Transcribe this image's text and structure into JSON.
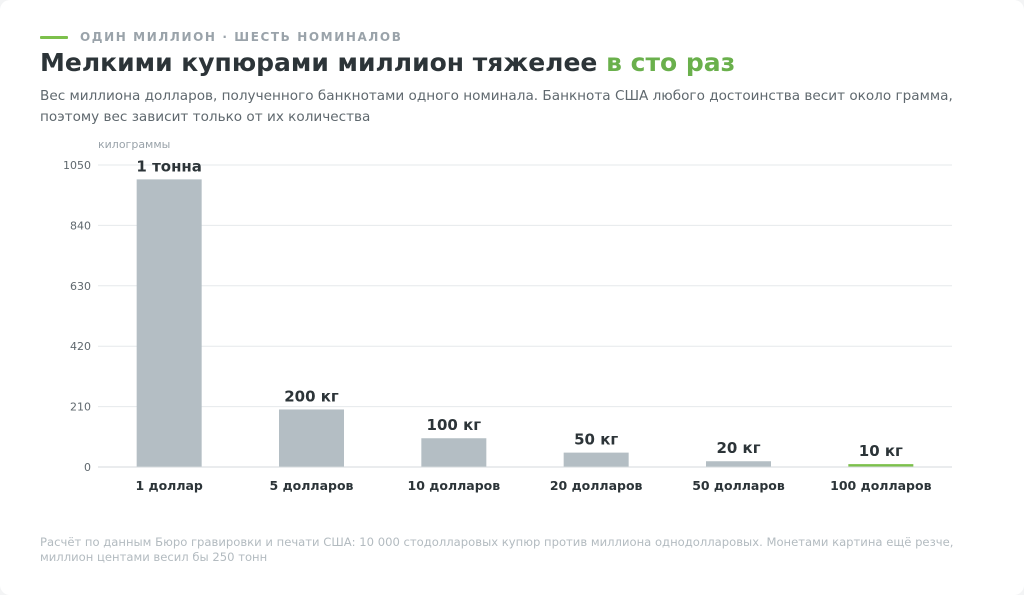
{
  "header": {
    "kicker": "ОДИН МИЛЛИОН · ШЕСТЬ НОМИНАЛОВ",
    "title_main": "Мелкими купюрами миллион тяжелее",
    "title_accent": "в сто раз",
    "subtitle": "Вес миллиона долларов, полученного банкнотами одного номинала. Банкнота США любого достоинства весит около грамма, поэтому вес зависит только от их количества"
  },
  "footnote": "Расчёт по данным Бюро гравировки и печати США: 10 000 стодолларовых купюр против миллиона однодолларовых. Монетами картина ещё резче, миллион центами весил бы 250 тонн",
  "colors": {
    "accent": "#7cc04b",
    "accent_text": "#6ab04c",
    "bar": "#b4bec4",
    "highlight_bar": "#7cc04b",
    "grid": "#e6e9eb",
    "axis": "#d5d9dc",
    "title": "#2c3438"
  },
  "chart_data": {
    "type": "bar",
    "ylabel": "килограммы",
    "ylim": [
      0,
      1050
    ],
    "yticks": [
      0,
      210,
      420,
      630,
      840,
      1050
    ],
    "grid": true,
    "categories": [
      "1 доллар",
      "5 долларов",
      "10 долларов",
      "20 долларов",
      "50 долларов",
      "100 долларов"
    ],
    "values": [
      1000,
      200,
      100,
      50,
      20,
      10
    ],
    "labels": [
      "1 тонна",
      "200 кг",
      "100 кг",
      "50 кг",
      "20 кг",
      "10 кг"
    ],
    "highlight_index": 5
  }
}
